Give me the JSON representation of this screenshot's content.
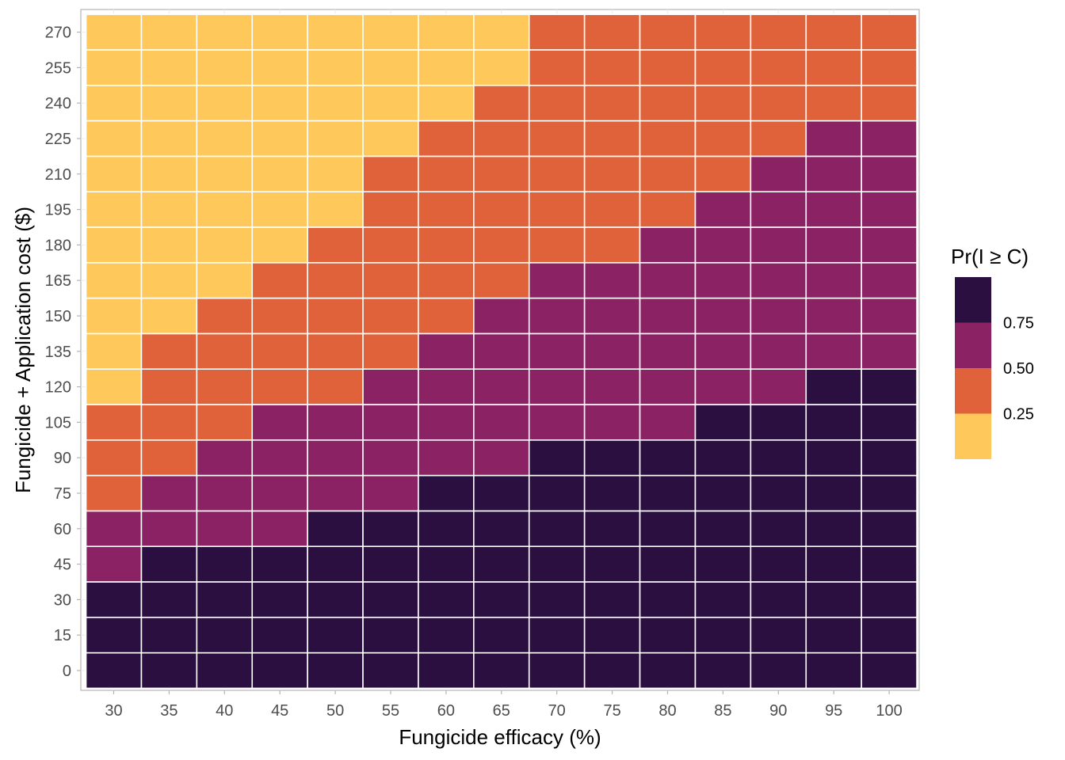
{
  "chart_data": {
    "type": "heatmap",
    "xlabel": "Fungicide efficacy (%)",
    "ylabel": "Fungicide + Application cost ($)",
    "x": [
      30,
      35,
      40,
      45,
      50,
      55,
      60,
      65,
      70,
      75,
      80,
      85,
      90,
      95,
      100
    ],
    "y": [
      0,
      15,
      30,
      45,
      60,
      75,
      90,
      105,
      120,
      135,
      150,
      165,
      180,
      195,
      210,
      225,
      240,
      255,
      270
    ],
    "z_bins": [
      {
        "label": "< 0.25",
        "color": "#FEC85A"
      },
      {
        "label": "0.25 – 0.50",
        "color": "#E0623A"
      },
      {
        "label": "0.50 – 0.75",
        "color": "#8B2264"
      },
      {
        "label": "> 0.75",
        "color": "#2A0F40"
      }
    ],
    "z_bin_index_rows_from_y0": [
      [
        3,
        3,
        3,
        3,
        3,
        3,
        3,
        3,
        3,
        3,
        3,
        3,
        3,
        3,
        3
      ],
      [
        3,
        3,
        3,
        3,
        3,
        3,
        3,
        3,
        3,
        3,
        3,
        3,
        3,
        3,
        3
      ],
      [
        3,
        3,
        3,
        3,
        3,
        3,
        3,
        3,
        3,
        3,
        3,
        3,
        3,
        3,
        3
      ],
      [
        2,
        3,
        3,
        3,
        3,
        3,
        3,
        3,
        3,
        3,
        3,
        3,
        3,
        3,
        3
      ],
      [
        2,
        2,
        2,
        2,
        3,
        3,
        3,
        3,
        3,
        3,
        3,
        3,
        3,
        3,
        3
      ],
      [
        1,
        2,
        2,
        2,
        2,
        2,
        3,
        3,
        3,
        3,
        3,
        3,
        3,
        3,
        3
      ],
      [
        1,
        1,
        2,
        2,
        2,
        2,
        2,
        2,
        3,
        3,
        3,
        3,
        3,
        3,
        3
      ],
      [
        1,
        1,
        1,
        2,
        2,
        2,
        2,
        2,
        2,
        2,
        2,
        3,
        3,
        3,
        3
      ],
      [
        0,
        1,
        1,
        1,
        1,
        2,
        2,
        2,
        2,
        2,
        2,
        2,
        2,
        3,
        3
      ],
      [
        0,
        1,
        1,
        1,
        1,
        1,
        2,
        2,
        2,
        2,
        2,
        2,
        2,
        2,
        2
      ],
      [
        0,
        0,
        1,
        1,
        1,
        1,
        1,
        2,
        2,
        2,
        2,
        2,
        2,
        2,
        2
      ],
      [
        0,
        0,
        0,
        1,
        1,
        1,
        1,
        1,
        2,
        2,
        2,
        2,
        2,
        2,
        2
      ],
      [
        0,
        0,
        0,
        0,
        1,
        1,
        1,
        1,
        1,
        1,
        2,
        2,
        2,
        2,
        2
      ],
      [
        0,
        0,
        0,
        0,
        0,
        1,
        1,
        1,
        1,
        1,
        1,
        2,
        2,
        2,
        2
      ],
      [
        0,
        0,
        0,
        0,
        0,
        1,
        1,
        1,
        1,
        1,
        1,
        1,
        2,
        2,
        2
      ],
      [
        0,
        0,
        0,
        0,
        0,
        0,
        1,
        1,
        1,
        1,
        1,
        1,
        1,
        2,
        2
      ],
      [
        0,
        0,
        0,
        0,
        0,
        0,
        0,
        1,
        1,
        1,
        1,
        1,
        1,
        1,
        1
      ],
      [
        0,
        0,
        0,
        0,
        0,
        0,
        0,
        0,
        1,
        1,
        1,
        1,
        1,
        1,
        1
      ],
      [
        0,
        0,
        0,
        0,
        0,
        0,
        0,
        0,
        1,
        1,
        1,
        1,
        1,
        1,
        1
      ]
    ],
    "legend": {
      "title": "Pr(I ≥ C)",
      "placement": "right",
      "labels": [
        "0.75",
        "0.50",
        "0.25"
      ],
      "colors_top_to_bottom": [
        "#2A0F40",
        "#8B2264",
        "#E0623A",
        "#FEC85A"
      ]
    },
    "grid": true
  }
}
